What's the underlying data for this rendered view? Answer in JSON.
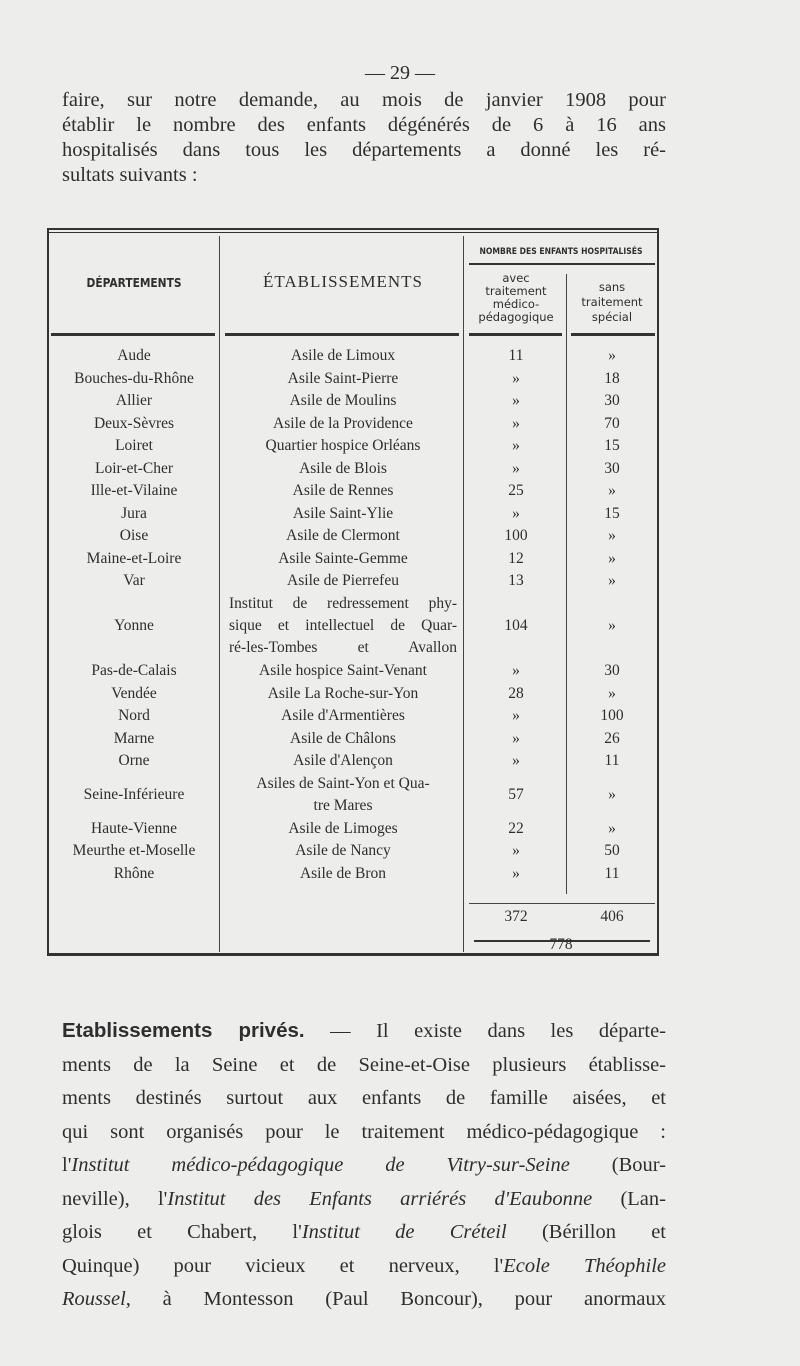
{
  "page_number": "— 29 —",
  "intro_lines": [
    "faire, sur notre demande, au mois de janvier 1908 pour",
    "établir le nombre des enfants dégénérés de 6 à 16 ans",
    "hospitalisés dans tous les départements a donné les ré-",
    "sultats suivants :"
  ],
  "table": {
    "headers": {
      "departements": "DÉPARTEMENTS",
      "etablissements": "ÉTABLISSEMENTS",
      "group": "NOMBRE DES ENFANTS HOSPITALISÉS",
      "avec": [
        "avec",
        "traitement",
        "médico-",
        "pédagogique"
      ],
      "sans": [
        "sans",
        "traitement",
        "spécial"
      ]
    },
    "rows": [
      {
        "dept": "Aude",
        "etab": [
          "Asile de Limoux"
        ],
        "avec": "11",
        "sans": "»"
      },
      {
        "dept": "Bouches-du-Rhône",
        "etab": [
          "Asile Saint-Pierre"
        ],
        "avec": "»",
        "sans": "18"
      },
      {
        "dept": "Allier",
        "etab": [
          "Asile de Moulins"
        ],
        "avec": "»",
        "sans": "30"
      },
      {
        "dept": "Deux-Sèvres",
        "etab": [
          "Asile de la Providence"
        ],
        "avec": "»",
        "sans": "70"
      },
      {
        "dept": "Loiret",
        "etab": [
          "Quartier hospice Orléans"
        ],
        "avec": "»",
        "sans": "15"
      },
      {
        "dept": "Loir-et-Cher",
        "etab": [
          "Asile de Blois"
        ],
        "avec": "»",
        "sans": "30"
      },
      {
        "dept": "Ille-et-Vilaine",
        "etab": [
          "Asile de Rennes"
        ],
        "avec": "25",
        "sans": "»"
      },
      {
        "dept": "Jura",
        "etab": [
          "Asile Saint-Ylie"
        ],
        "avec": "»",
        "sans": "15"
      },
      {
        "dept": "Oise",
        "etab": [
          "Asile de Clermont"
        ],
        "avec": "100",
        "sans": "»"
      },
      {
        "dept": "Maine-et-Loire",
        "etab": [
          "Asile Sainte-Gemme"
        ],
        "avec": "12",
        "sans": "»"
      },
      {
        "dept": "Var",
        "etab": [
          "Asile de Pierrefeu"
        ],
        "avec": "13",
        "sans": "»"
      },
      {
        "dept": "Yonne",
        "etab": [
          "Institut de redressement phy-",
          "sique et intellectuel de Quar-",
          "ré-les-Tombes et Avallon"
        ],
        "avec": "104",
        "sans": "»"
      },
      {
        "dept": "Pas-de-Calais",
        "etab": [
          "Asile hospice Saint-Venant"
        ],
        "avec": "»",
        "sans": "30"
      },
      {
        "dept": "Vendée",
        "etab": [
          "Asile La Roche-sur-Yon"
        ],
        "avec": "28",
        "sans": "»"
      },
      {
        "dept": "Nord",
        "etab": [
          "Asile d'Armentières"
        ],
        "avec": "»",
        "sans": "100"
      },
      {
        "dept": "Marne",
        "etab": [
          "Asile de Châlons"
        ],
        "avec": "»",
        "sans": "26"
      },
      {
        "dept": "Orne",
        "etab": [
          "Asile d'Alençon"
        ],
        "avec": "»",
        "sans": "11"
      },
      {
        "dept": "Seine-Inférieure",
        "etab": [
          "Asiles de Saint-Yon et Qua-",
          "tre Mares"
        ],
        "avec": "57",
        "sans": "»"
      },
      {
        "dept": "Haute-Vienne",
        "etab": [
          "Asile de Limoges"
        ],
        "avec": "22",
        "sans": "»"
      },
      {
        "dept": "Meurthe et-Moselle",
        "etab": [
          "Asile de Nancy"
        ],
        "avec": "»",
        "sans": "50"
      },
      {
        "dept": "Rhône",
        "etab": [
          "Asile de Bron"
        ],
        "avec": "»",
        "sans": "11"
      }
    ],
    "total_avec": "372",
    "total_sans": "406",
    "grand_total": "778"
  },
  "body": {
    "heading": "Etablissements privés.",
    "lines": [
      [
        {
          "t": " — Il existe dans les départe-"
        }
      ],
      [
        {
          "t": "ments de la Seine et de Seine-et-Oise plusieurs établisse-"
        }
      ],
      [
        {
          "t": "ments destinés surtout aux enfants de famille aisées, et"
        }
      ],
      [
        {
          "t": "qui sont organisés pour le traitement médico-pédagogique :"
        }
      ],
      [
        {
          "t": "l'"
        },
        {
          "t": "Institut médico-pédagogique de Vitry-sur-Seine",
          "i": true
        },
        {
          "t": " (Bour-"
        }
      ],
      [
        {
          "t": "neville), l'"
        },
        {
          "t": "Institut des Enfants arriérés d'Eaubonne",
          "i": true
        },
        {
          "t": " (Lan-"
        }
      ],
      [
        {
          "t": "glois et Chabert, l'"
        },
        {
          "t": "Institut de Créteil",
          "i": true
        },
        {
          "t": " (Bérillon et"
        }
      ],
      [
        {
          "t": "Quinque) pour vicieux et nerveux, l'"
        },
        {
          "t": "Ecole Théophile",
          "i": true
        }
      ],
      [
        {
          "t": "Roussel",
          "i": true
        },
        {
          "t": ", à Montesson (Paul Boncour), pour anormaux"
        }
      ]
    ]
  }
}
